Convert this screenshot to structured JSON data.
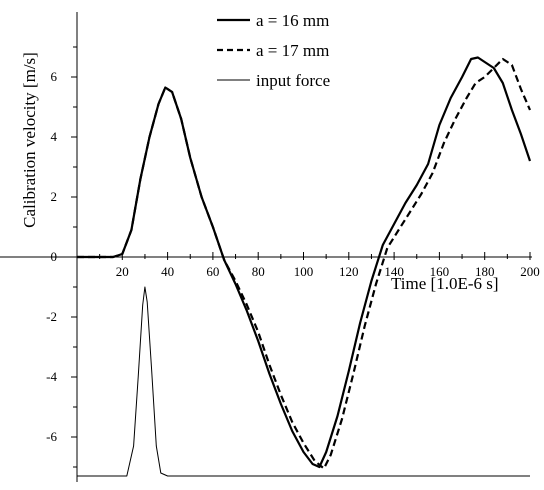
{
  "chart_data": {
    "type": "line",
    "title": "",
    "xlabel": "Time [1.0E-6 s]",
    "ylabel": "Calibration velocity [m/s]",
    "xlim": [
      0,
      200
    ],
    "ylim": [
      -7.3,
      8
    ],
    "grid": false,
    "legend_position": "top-right",
    "x_ticks": [
      20,
      40,
      60,
      80,
      100,
      120,
      140,
      160,
      180,
      200
    ],
    "x_tick_labels": [
      "20",
      "40",
      "60",
      "80",
      "100",
      "120",
      "140",
      "160",
      "180",
      "200"
    ],
    "y_ticks": [
      -6,
      -4,
      -2,
      0,
      2,
      4,
      6
    ],
    "y_tick_labels": [
      "-6",
      "-4",
      "-2",
      "0",
      "2",
      "4",
      "6"
    ],
    "series": [
      {
        "name": "a = 16 mm",
        "style": "solid-thick",
        "color": "#000000",
        "x": [
          0,
          16,
          20,
          24,
          28,
          32,
          36,
          39,
          42,
          46,
          50,
          55,
          60,
          65,
          70,
          75,
          80,
          85,
          90,
          95,
          100,
          104,
          107,
          110,
          115,
          120,
          125,
          130,
          135,
          140,
          145,
          150,
          155,
          160,
          165,
          170,
          174,
          177,
          180,
          184,
          188,
          192,
          196,
          200
        ],
        "y": [
          0,
          0,
          0.1,
          0.9,
          2.6,
          4.0,
          5.1,
          5.65,
          5.5,
          4.6,
          3.3,
          2.0,
          1.0,
          -0.1,
          -0.9,
          -1.8,
          -2.8,
          -3.9,
          -4.9,
          -5.8,
          -6.5,
          -6.9,
          -7.0,
          -6.5,
          -5.3,
          -3.8,
          -2.2,
          -0.8,
          0.4,
          1.1,
          1.8,
          2.4,
          3.1,
          4.4,
          5.3,
          6.0,
          6.6,
          6.65,
          6.5,
          6.3,
          5.8,
          4.9,
          4.1,
          3.2
        ]
      },
      {
        "name": "a = 17 mm",
        "style": "dashed-thick",
        "color": "#000000",
        "x": [
          0,
          16,
          20,
          24,
          28,
          32,
          36,
          39,
          42,
          46,
          50,
          55,
          60,
          65,
          70,
          75,
          80,
          85,
          90,
          95,
          100,
          105,
          109,
          112,
          117,
          122,
          127,
          132,
          137,
          142,
          147,
          152,
          157,
          162,
          167,
          172,
          176,
          180,
          184,
          188,
          192,
          196,
          200
        ],
        "y": [
          0,
          0,
          0.1,
          0.9,
          2.6,
          4.0,
          5.1,
          5.65,
          5.5,
          4.6,
          3.3,
          2.0,
          1.0,
          -0.1,
          -0.8,
          -1.6,
          -2.5,
          -3.6,
          -4.6,
          -5.5,
          -6.2,
          -6.8,
          -7.05,
          -6.6,
          -5.4,
          -3.9,
          -2.3,
          -0.9,
          0.3,
          0.9,
          1.5,
          2.1,
          2.8,
          3.8,
          4.6,
          5.3,
          5.8,
          6.0,
          6.3,
          6.6,
          6.4,
          5.6,
          4.9
        ]
      },
      {
        "name": "input force",
        "style": "solid-thin",
        "color": "#000000",
        "x": [
          0,
          22,
          25,
          27,
          29,
          30,
          31,
          33,
          35,
          37,
          40,
          200
        ],
        "y": [
          -7.3,
          -7.3,
          -6.3,
          -4.0,
          -1.6,
          -1.0,
          -1.5,
          -3.8,
          -6.3,
          -7.2,
          -7.3,
          -7.3
        ]
      }
    ]
  }
}
